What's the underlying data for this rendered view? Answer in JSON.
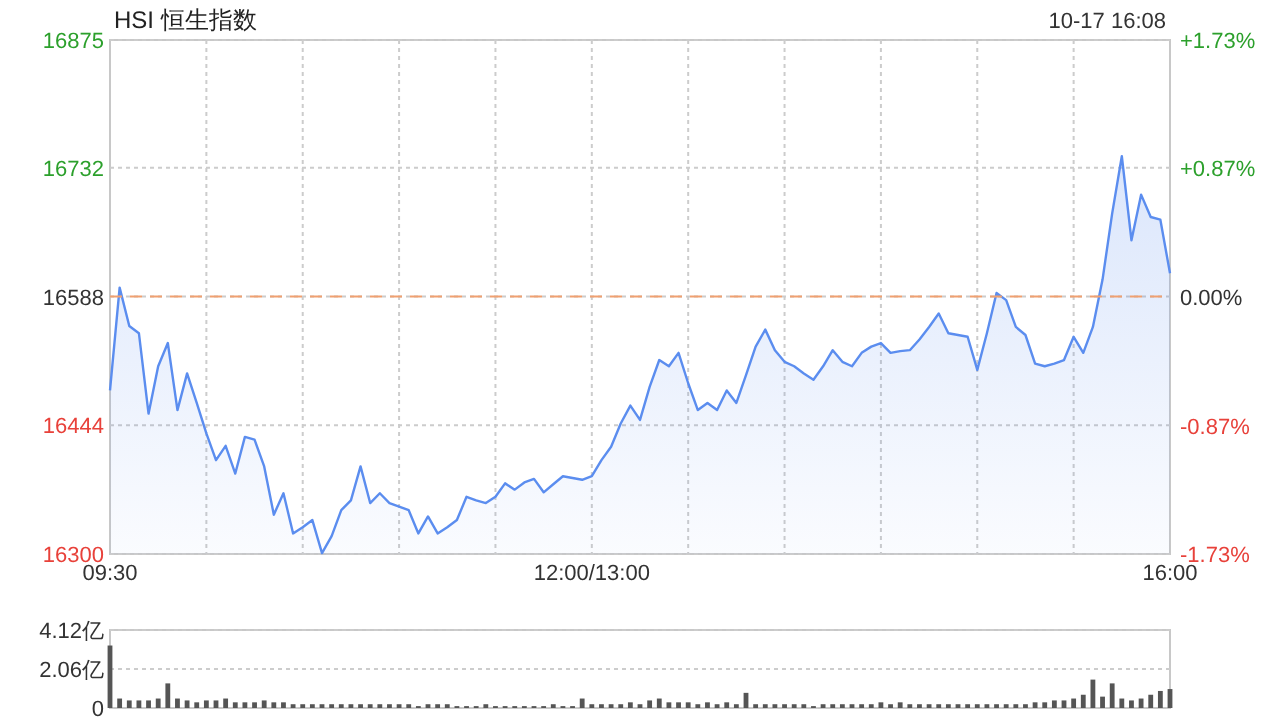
{
  "chart_data": [
    {
      "type": "area",
      "title": "HSI 恒生指数",
      "annotations": [
        "10-17 16:08"
      ],
      "color": "#5b8def",
      "grid": true,
      "categories": [
        "09:30",
        null,
        null,
        null,
        null,
        null,
        null,
        null,
        null,
        null,
        null,
        null,
        null,
        null,
        null,
        null,
        null,
        null,
        null,
        null,
        null,
        null,
        null,
        null,
        null,
        null,
        null,
        null,
        null,
        null,
        null,
        null,
        null,
        null,
        null,
        null,
        null,
        null,
        null,
        null,
        null,
        null,
        null,
        null,
        null,
        null,
        null,
        null,
        null,
        null,
        "12:00/13:00",
        null,
        null,
        null,
        null,
        null,
        null,
        null,
        null,
        null,
        null,
        null,
        null,
        null,
        null,
        null,
        null,
        null,
        null,
        null,
        null,
        null,
        null,
        null,
        null,
        null,
        null,
        null,
        null,
        null,
        null,
        null,
        null,
        null,
        null,
        null,
        null,
        null,
        null,
        null,
        null,
        null,
        null,
        null,
        null,
        null,
        null,
        null,
        null,
        null,
        null,
        null,
        null,
        null,
        null,
        null,
        null,
        null,
        null,
        null,
        "16:00"
      ],
      "ylim": [
        16300,
        16875
      ],
      "yticks": [
        16300,
        16444,
        16588,
        16732,
        16875
      ],
      "y2lim": [
        -1.73,
        1.73
      ],
      "y2ticks": [
        {
          "value": -1.73,
          "label": "-1.73%"
        },
        {
          "value": -0.87,
          "label": "-0.87%"
        },
        {
          "value": 0,
          "label": "0.00%"
        },
        {
          "value": 0.87,
          "label": "+0.87%"
        },
        {
          "value": 1.73,
          "label": "+1.73%"
        }
      ],
      "ref_lines": [
        {
          "axis": "y",
          "value": 16588,
          "label": null,
          "color": "#f0a070",
          "line_style": "dashed"
        }
      ],
      "values": [
        16483,
        16598,
        16555,
        16547,
        16457,
        16510,
        16536,
        16461,
        16502,
        16469,
        16435,
        16405,
        16421,
        16390,
        16431,
        16428,
        16398,
        16344,
        16368,
        16323,
        16330,
        16338,
        16301,
        16320,
        16349,
        16360,
        16398,
        16357,
        16368,
        16357,
        16353,
        16349,
        16323,
        16342,
        16323,
        16330,
        16338,
        16364,
        16360,
        16357,
        16364,
        16379,
        16372,
        16380,
        16384,
        16369,
        16378,
        16387,
        16385,
        16383,
        16387,
        16405,
        16420,
        16446,
        16466,
        16450,
        16487,
        16517,
        16510,
        16525,
        16491,
        16461,
        16469,
        16461,
        16483,
        16469,
        16500,
        16532,
        16551,
        16528,
        16515,
        16510,
        16502,
        16495,
        16510,
        16528,
        16515,
        16510,
        16525,
        16532,
        16536,
        16525,
        16527,
        16528,
        16540,
        16554,
        16569,
        16547,
        16545,
        16543,
        16506,
        16547,
        16592,
        16584,
        16554,
        16545,
        16513,
        16510,
        16513,
        16517,
        16543,
        16525,
        16554,
        16607,
        16681,
        16745,
        16651,
        16702,
        16677,
        16674,
        16614
      ]
    },
    {
      "type": "bar",
      "color": "#555555",
      "grid": "y",
      "tick_labels": "y",
      "categories": [
        null,
        null,
        null,
        null,
        null,
        null,
        null,
        null,
        null,
        null,
        null,
        null,
        null,
        null,
        null,
        null,
        null,
        null,
        null,
        null,
        null,
        null,
        null,
        null,
        null,
        null,
        null,
        null,
        null,
        null,
        null,
        null,
        null,
        null,
        null,
        null,
        null,
        null,
        null,
        null,
        null,
        null,
        null,
        null,
        null,
        null,
        null,
        null,
        null,
        null,
        null,
        null,
        null,
        null,
        null,
        null,
        null,
        null,
        null,
        null,
        null,
        null,
        null,
        null,
        null,
        null,
        null,
        null,
        null,
        null,
        null,
        null,
        null,
        null,
        null,
        null,
        null,
        null,
        null,
        null,
        null,
        null,
        null,
        null,
        null,
        null,
        null,
        null,
        null,
        null,
        null,
        null,
        null,
        null,
        null,
        null,
        null,
        null,
        null,
        null,
        null,
        null,
        null,
        null,
        null,
        null,
        null,
        null,
        null,
        null,
        null
      ],
      "ylim": [
        0,
        4.12
      ],
      "yticks": [
        0,
        {
          "value": 2.06,
          "label": "2.06亿"
        },
        {
          "value": 4.12,
          "label": "4.12亿"
        }
      ],
      "values": [
        3.3,
        0.5,
        0.4,
        0.4,
        0.4,
        0.5,
        1.3,
        0.5,
        0.4,
        0.3,
        0.4,
        0.4,
        0.5,
        0.3,
        0.3,
        0.3,
        0.4,
        0.3,
        0.3,
        0.2,
        0.2,
        0.2,
        0.2,
        0.2,
        0.2,
        0.2,
        0.2,
        0.2,
        0.2,
        0.2,
        0.2,
        0.2,
        0.1,
        0.2,
        0.2,
        0.2,
        0.1,
        0.1,
        0.1,
        0.2,
        0.1,
        0.1,
        0.1,
        0.1,
        0.1,
        0.1,
        0.2,
        0.1,
        0.1,
        0.5,
        0.2,
        0.2,
        0.2,
        0.2,
        0.3,
        0.2,
        0.4,
        0.5,
        0.3,
        0.3,
        0.3,
        0.2,
        0.3,
        0.2,
        0.3,
        0.2,
        0.8,
        0.2,
        0.2,
        0.2,
        0.2,
        0.2,
        0.2,
        0.1,
        0.2,
        0.2,
        0.2,
        0.2,
        0.2,
        0.2,
        0.3,
        0.2,
        0.3,
        0.2,
        0.2,
        0.2,
        0.2,
        0.2,
        0.2,
        0.2,
        0.2,
        0.2,
        0.2,
        0.2,
        0.2,
        0.2,
        0.3,
        0.3,
        0.4,
        0.4,
        0.5,
        0.7,
        1.5,
        0.6,
        1.3,
        0.5,
        0.4,
        0.5,
        0.7,
        0.9,
        1.0
      ]
    }
  ]
}
